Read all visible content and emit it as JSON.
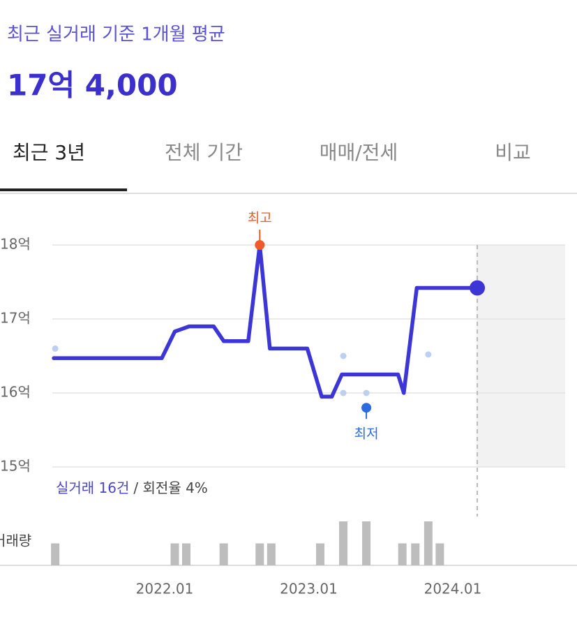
{
  "header": {
    "title": "최근 실거래 기준 1개월 평균",
    "price": "17억 4,000"
  },
  "tabs": [
    "최근 3년",
    "전체 기간",
    "매매/전세",
    "비교"
  ],
  "active_tab": 0,
  "chart_data": {
    "type": "line",
    "xlim": [
      2021.22,
      2024.78
    ],
    "xticks": [
      {
        "value": 2022,
        "label": "2022.01"
      },
      {
        "value": 2023,
        "label": "2023.01"
      },
      {
        "value": 2024,
        "label": "2024.01"
      }
    ],
    "ylim": [
      15,
      18
    ],
    "yticks": [
      {
        "value": 15,
        "label": "15억"
      },
      {
        "value": 16,
        "label": "16억"
      },
      {
        "value": 17,
        "label": "17억"
      },
      {
        "value": 18,
        "label": "18억"
      }
    ],
    "grid": true,
    "forecast_start": 2024.17,
    "series": [
      {
        "type": "line",
        "color": "#3d36d6",
        "x": [
          2021.23,
          2021.98,
          2022.07,
          2022.17,
          2022.34,
          2022.41,
          2022.58,
          2022.66,
          2022.73,
          2022.99,
          2023.09,
          2023.16,
          2023.23,
          2023.62,
          2023.66,
          2023.75,
          2024.17
        ],
        "values": [
          16.47,
          16.47,
          16.83,
          16.9,
          16.9,
          16.7,
          16.7,
          18.0,
          16.6,
          16.6,
          15.95,
          15.95,
          16.25,
          16.25,
          16.0,
          17.42,
          17.42
        ]
      },
      {
        "type": "scatter",
        "color": "#bcd0f2",
        "x": [
          2021.24,
          2023.24,
          2023.24,
          2023.4,
          2023.83
        ],
        "values": [
          16.6,
          16.5,
          16.0,
          16.0,
          16.52
        ]
      }
    ],
    "annotations": [
      {
        "text": "최고",
        "x": 2022.66,
        "y": 18.0,
        "color": "#f05a28"
      },
      {
        "text": "최저",
        "x": 2023.4,
        "y": 15.8,
        "color": "#2d6be0"
      }
    ],
    "summary": {
      "deals": "실거래 16건",
      "turnover": "/ 회전율 4%"
    },
    "volume": {
      "label": "거래량",
      "color": "#bdbdbd",
      "ylim": [
        0,
        2
      ],
      "x": [
        2021.24,
        2022.07,
        2022.15,
        2022.41,
        2022.66,
        2022.74,
        2023.08,
        2023.24,
        2023.4,
        2023.65,
        2023.74,
        2023.83,
        2023.91
      ],
      "values": [
        1,
        1,
        1,
        1,
        1,
        1,
        1,
        2,
        2,
        1,
        1,
        2,
        1
      ]
    }
  }
}
